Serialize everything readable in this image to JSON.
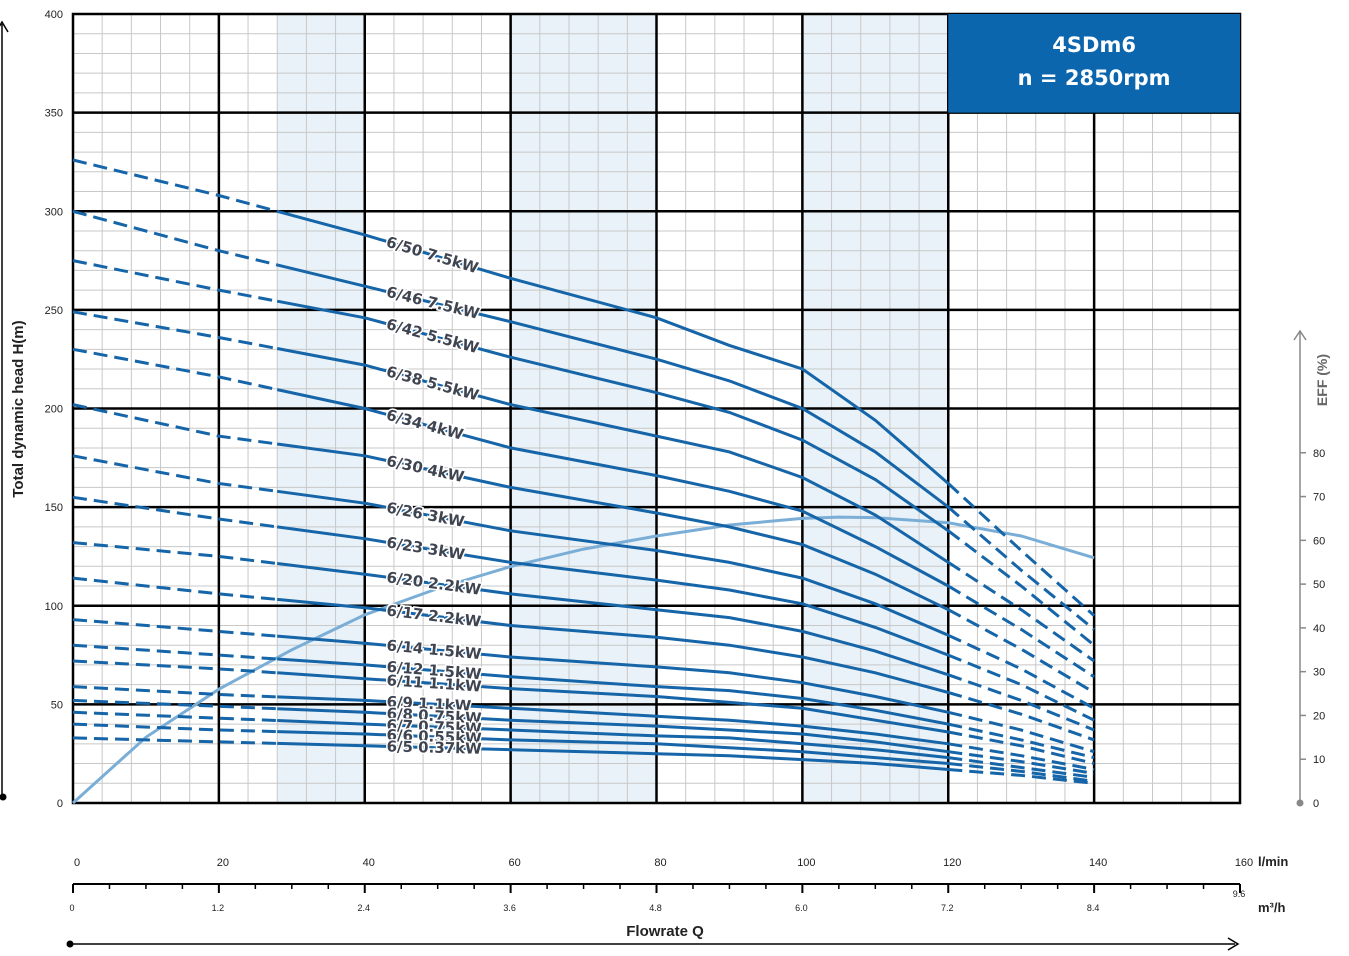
{
  "chart_data": {
    "type": "line",
    "title": "4SDm6",
    "subtitle": "n = 2850rpm",
    "ylabel": "Total dynamic head H(m)",
    "y2label": "EFF (%)",
    "xlabel": "Flowrate Q",
    "x_unit": "l/min",
    "x2_unit": "m³/h",
    "xlim": [
      0,
      160
    ],
    "ylim": [
      0,
      400
    ],
    "y2lim": [
      0,
      90
    ],
    "x_ticks": [
      "0",
      "20",
      "40",
      "60",
      "80",
      "100",
      "120",
      "140",
      "160"
    ],
    "x2_ticks": [
      "0",
      "1.2",
      "2.4",
      "3.6",
      "4.8",
      "6.0",
      "7.2",
      "8.4",
      "9.6"
    ],
    "y_ticks": [
      "0",
      "50",
      "100",
      "150",
      "200",
      "250",
      "300",
      "350",
      "400"
    ],
    "y2_ticks": [
      "0",
      "10",
      "20",
      "30",
      "40",
      "50",
      "60",
      "70",
      "80"
    ],
    "operating_range": [
      28,
      120
    ],
    "recommended_bands": [
      [
        28,
        40
      ],
      [
        60,
        80
      ],
      [
        100,
        120
      ]
    ],
    "grid": true,
    "series": [
      {
        "name": "6/50 7.5kW",
        "x": [
          0,
          20,
          40,
          60,
          80,
          90,
          100,
          110,
          120,
          130,
          140
        ],
        "y": [
          326,
          308,
          288,
          266,
          246,
          232,
          220,
          194,
          162,
          128,
          95
        ]
      },
      {
        "name": "6/46 7.5kW",
        "x": [
          0,
          20,
          40,
          60,
          80,
          90,
          100,
          110,
          120,
          130,
          140
        ],
        "y": [
          300,
          280,
          262,
          244,
          225,
          214,
          200,
          178,
          150,
          118,
          88
        ]
      },
      {
        "name": "6/42 5.5kW",
        "x": [
          0,
          20,
          40,
          60,
          80,
          90,
          100,
          110,
          120,
          130,
          140
        ],
        "y": [
          275,
          260,
          246,
          226,
          208,
          198,
          184,
          164,
          138,
          110,
          80
        ]
      },
      {
        "name": "6/38 5.5kW",
        "x": [
          0,
          20,
          40,
          60,
          80,
          90,
          100,
          110,
          120,
          130,
          140
        ],
        "y": [
          249,
          236,
          222,
          202,
          186,
          178,
          165,
          146,
          122,
          98,
          72
        ]
      },
      {
        "name": "6/34 4kW",
        "x": [
          0,
          20,
          40,
          60,
          80,
          90,
          100,
          110,
          120,
          130,
          140
        ],
        "y": [
          230,
          216,
          200,
          180,
          166,
          158,
          148,
          130,
          110,
          88,
          64
        ]
      },
      {
        "name": "6/30 4kW",
        "x": [
          0,
          20,
          40,
          60,
          80,
          90,
          100,
          110,
          120,
          130,
          140
        ],
        "y": [
          202,
          186,
          176,
          160,
          147,
          140,
          131,
          116,
          98,
          78,
          56
        ]
      },
      {
        "name": "6/26 3kW",
        "x": [
          0,
          20,
          40,
          60,
          80,
          90,
          100,
          110,
          120,
          130,
          140
        ],
        "y": [
          176,
          162,
          152,
          138,
          128,
          122,
          114,
          101,
          85,
          68,
          48
        ]
      },
      {
        "name": "6/23 3kW",
        "x": [
          0,
          20,
          40,
          60,
          80,
          90,
          100,
          110,
          120,
          130,
          140
        ],
        "y": [
          155,
          144,
          134,
          122,
          113,
          108,
          101,
          89,
          75,
          60,
          42
        ]
      },
      {
        "name": "6/20 2.2kW",
        "x": [
          0,
          20,
          40,
          60,
          80,
          90,
          100,
          110,
          120,
          130,
          140
        ],
        "y": [
          132,
          125,
          116,
          106,
          98,
          94,
          87,
          77,
          65,
          52,
          37
        ]
      },
      {
        "name": "6/17 2.2kW",
        "x": [
          0,
          20,
          40,
          60,
          80,
          90,
          100,
          110,
          120,
          130,
          140
        ],
        "y": [
          114,
          106,
          99,
          90,
          84,
          80,
          74,
          66,
          56,
          45,
          32
        ]
      },
      {
        "name": "6/14 1.5kW",
        "x": [
          0,
          20,
          40,
          60,
          80,
          90,
          100,
          110,
          120,
          130,
          140
        ],
        "y": [
          93,
          87,
          81,
          74,
          69,
          66,
          61,
          54,
          46,
          37,
          26
        ]
      },
      {
        "name": "6/12 1.5kW",
        "x": [
          0,
          20,
          40,
          60,
          80,
          90,
          100,
          110,
          120,
          130,
          140
        ],
        "y": [
          80,
          75,
          70,
          64,
          59,
          57,
          53,
          47,
          40,
          32,
          23
        ]
      },
      {
        "name": "6/11 1.1kW",
        "x": [
          0,
          20,
          40,
          60,
          80,
          90,
          100,
          110,
          120,
          130,
          140
        ],
        "y": [
          72,
          68,
          63,
          58,
          54,
          51,
          48,
          42,
          36,
          29,
          20
        ]
      },
      {
        "name": "6/9 1.1kW",
        "x": [
          0,
          20,
          40,
          60,
          80,
          90,
          100,
          110,
          120,
          130,
          140
        ],
        "y": [
          59,
          55,
          52,
          48,
          44,
          42,
          39,
          35,
          30,
          24,
          17
        ]
      },
      {
        "name": "6/8 0.75kW",
        "x": [
          0,
          20,
          40,
          60,
          80,
          90,
          100,
          110,
          120,
          130,
          140
        ],
        "y": [
          52,
          49,
          46,
          42,
          39,
          37,
          35,
          31,
          26,
          21,
          15
        ]
      },
      {
        "name": "6/7 0.75kW",
        "x": [
          0,
          20,
          40,
          60,
          80,
          90,
          100,
          110,
          120,
          130,
          140
        ],
        "y": [
          46,
          43,
          40,
          37,
          34,
          33,
          30,
          27,
          23,
          18,
          13
        ]
      },
      {
        "name": "6/6 0.55kW",
        "x": [
          0,
          20,
          40,
          60,
          80,
          90,
          100,
          110,
          120,
          130,
          140
        ],
        "y": [
          40,
          37,
          35,
          32,
          30,
          28,
          26,
          23,
          20,
          16,
          11
        ]
      },
      {
        "name": "6/5 0.37kW",
        "x": [
          0,
          20,
          40,
          60,
          80,
          90,
          100,
          110,
          120,
          130,
          140
        ],
        "y": [
          33,
          31,
          29,
          27,
          25,
          24,
          22,
          20,
          17,
          14,
          10
        ]
      }
    ],
    "efficiency": {
      "x": [
        0,
        10,
        20,
        30,
        40,
        50,
        60,
        70,
        80,
        90,
        100,
        105,
        110,
        120,
        130,
        140
      ],
      "y": [
        0,
        15,
        26,
        35,
        43,
        49,
        54,
        58,
        61,
        63.5,
        65,
        65.3,
        65.2,
        64,
        61,
        56
      ]
    },
    "colors": {
      "curve": "#1565a8",
      "efficiency": "#7aaed6",
      "band": "#e9f2f8",
      "title_box": "#0b66ae",
      "grid_major": "#000000",
      "grid_minor": "#c8c8c8",
      "axis_gray": "#888888"
    }
  }
}
